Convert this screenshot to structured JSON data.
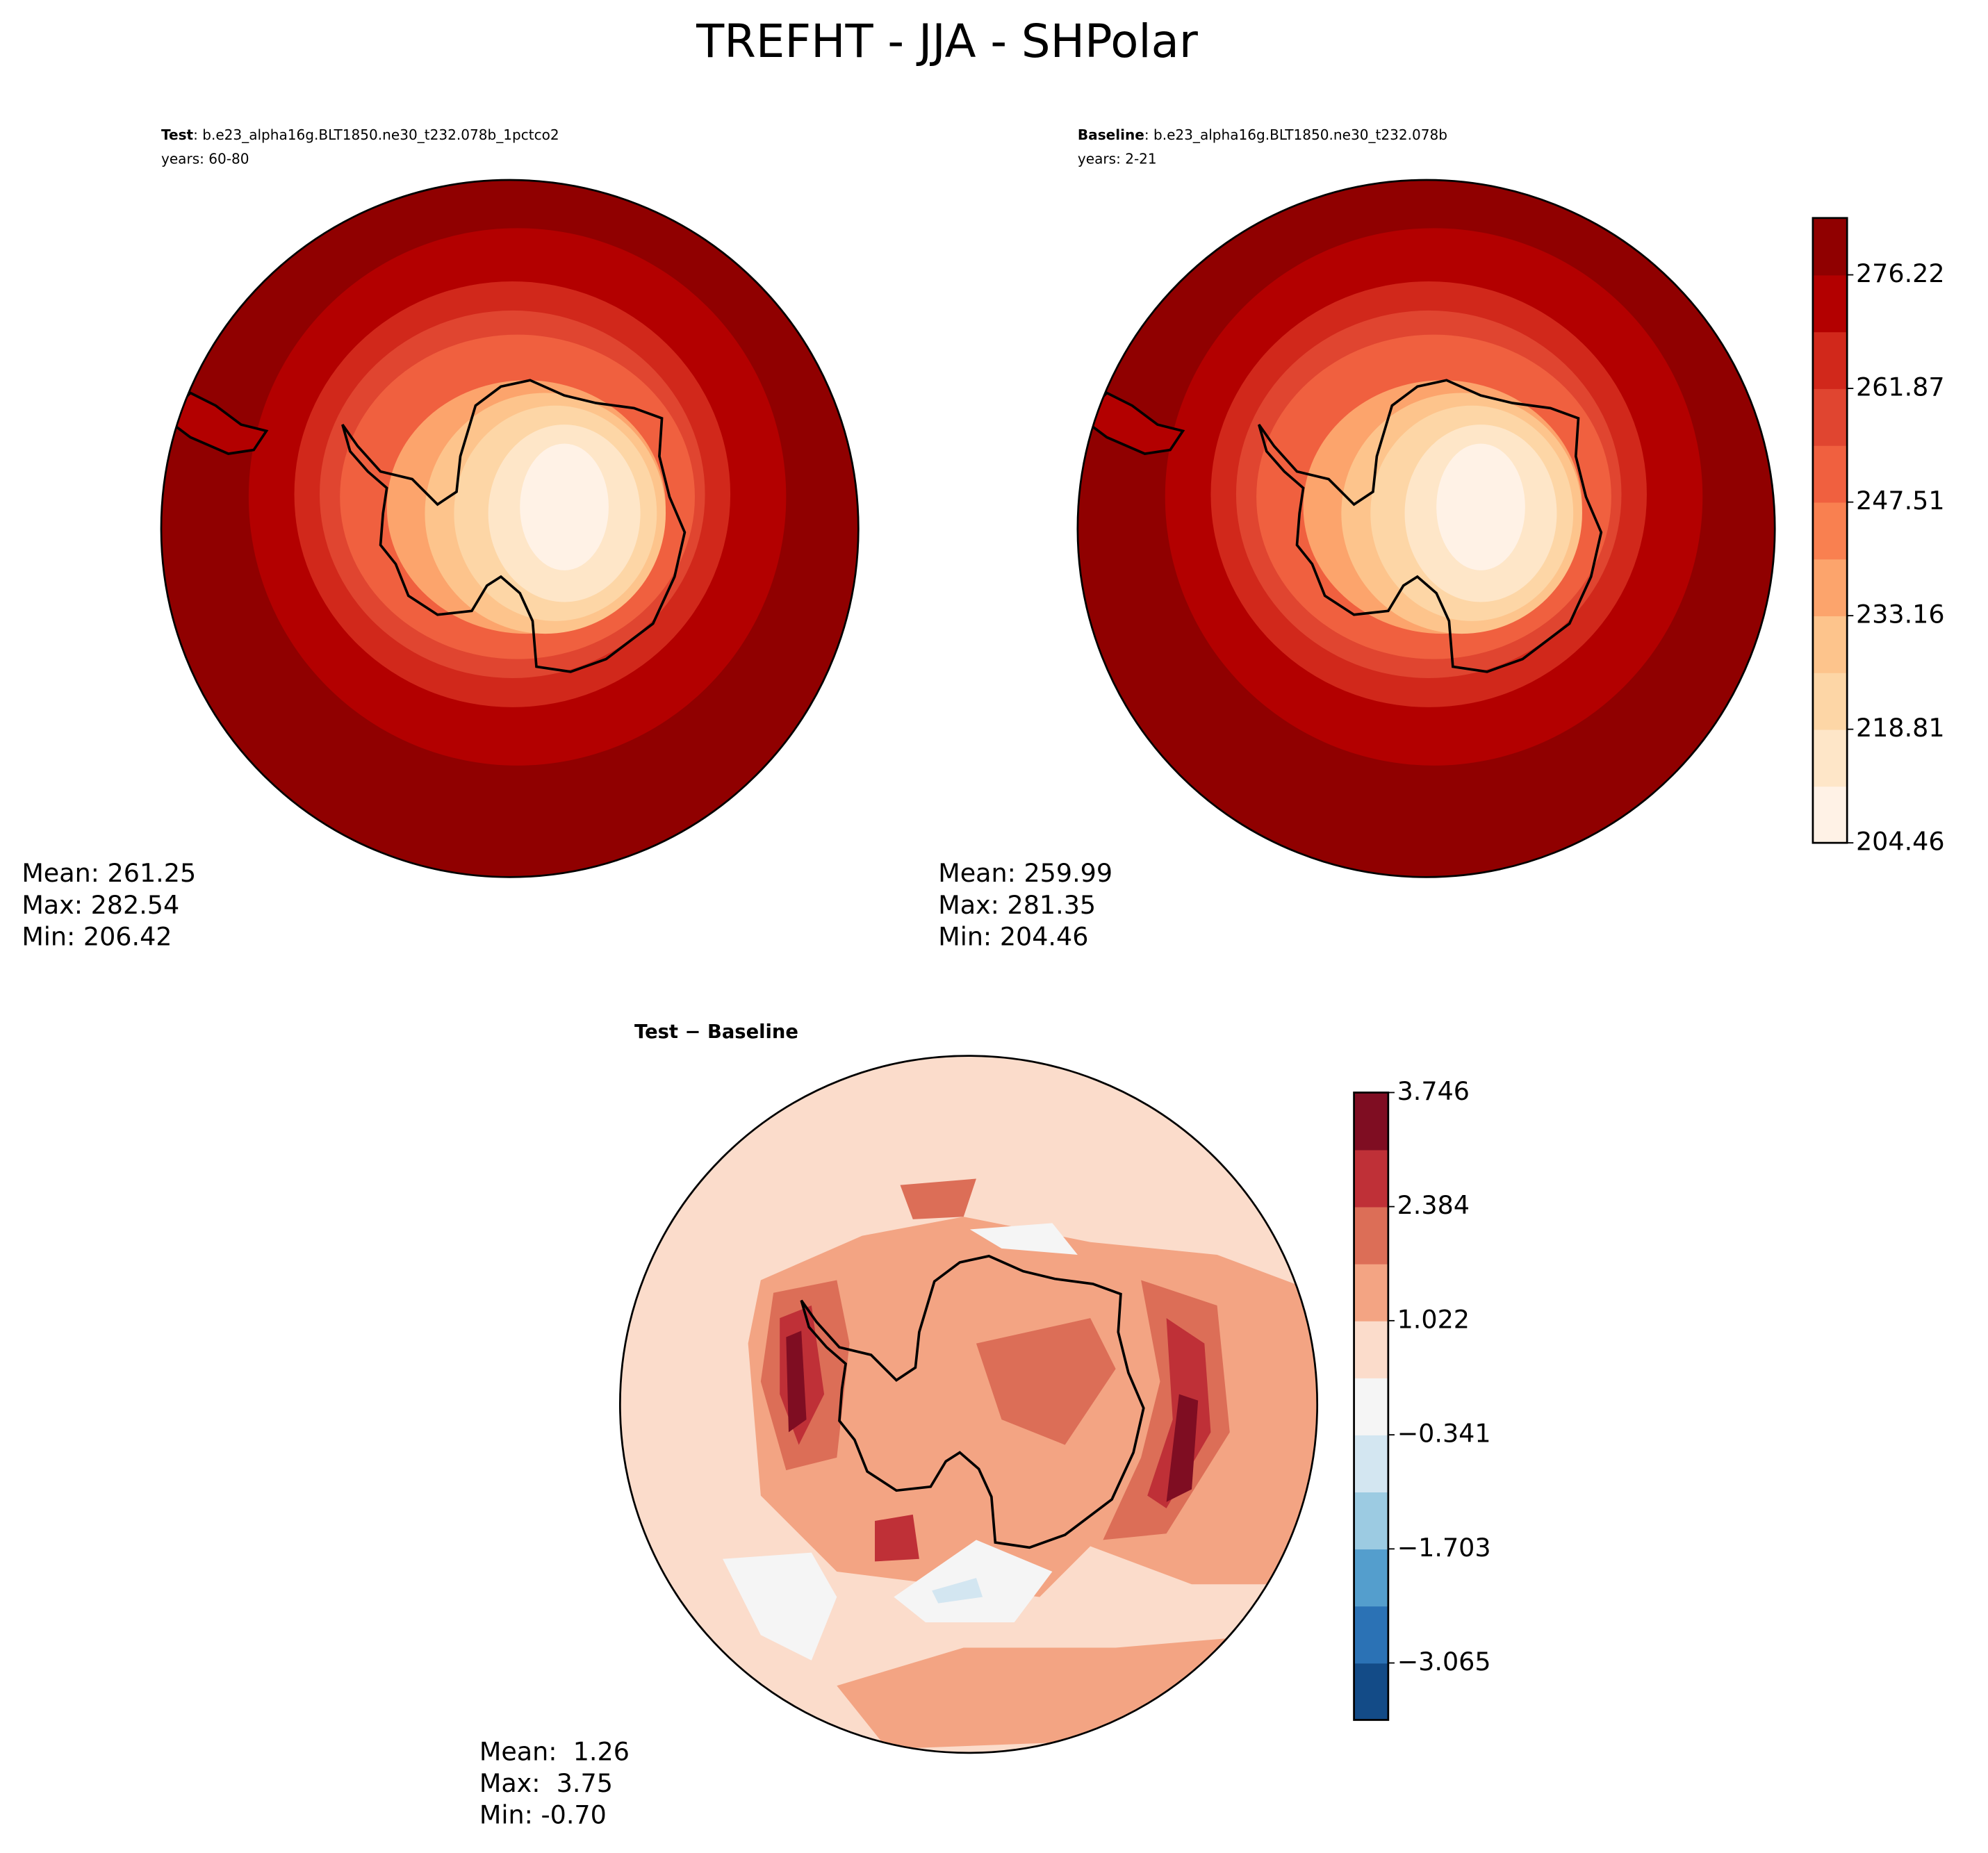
{
  "title": "TREFHT - JJA - SHPolar",
  "chart_data": [
    {
      "type": "contour_map",
      "subtitle_bold": "Test",
      "subtitle": ": b.e23_alpha16g.BLT1850.ne30_t232.078b_1pctco2",
      "years": "years: 60-80",
      "stats": [
        "Mean: 261.25",
        "Max: 282.54",
        "Min: 206.42"
      ]
    },
    {
      "type": "contour_map",
      "subtitle_bold": "Baseline",
      "subtitle": ": b.e23_alpha16g.BLT1850.ne30_t232.078b",
      "years": "years: 2-21",
      "stats": [
        "Mean: 259.99",
        "Max: 281.35",
        "Min: 204.46"
      ],
      "colorbar": {
        "ylim": [
          204.46,
          283.4
        ],
        "yticks": [
          204.46,
          218.81,
          233.16,
          247.51,
          261.87,
          276.22
        ],
        "colors": [
          "#fff2e6",
          "#fee6c8",
          "#fdd6a6",
          "#fdc48c",
          "#fca46c",
          "#f98050",
          "#f0603f",
          "#e04530",
          "#d1281b",
          "#b30000",
          "#900000"
        ]
      }
    },
    {
      "type": "contour_map",
      "title": "Test − Baseline",
      "stats": [
        "Mean:  1.26",
        "Max:  3.75",
        "Min: -0.70"
      ],
      "colorbar": {
        "ylim": [
          -3.745,
          3.746
        ],
        "yticks": [
          {
            "value": -3.065,
            "label": "−3.065"
          },
          {
            "value": -1.703,
            "label": "−1.703"
          },
          {
            "value": -0.341,
            "label": "−0.341"
          },
          1.022,
          2.384,
          3.746
        ],
        "colors": [
          "#134b87",
          "#2b72b5",
          "#549ecd",
          "#9ccbe2",
          "#d3e6f1",
          "#f5f5f5",
          "#fbdccb",
          "#f3a483",
          "#dc6e57",
          "#bf3037",
          "#7f0d22"
        ]
      }
    }
  ]
}
